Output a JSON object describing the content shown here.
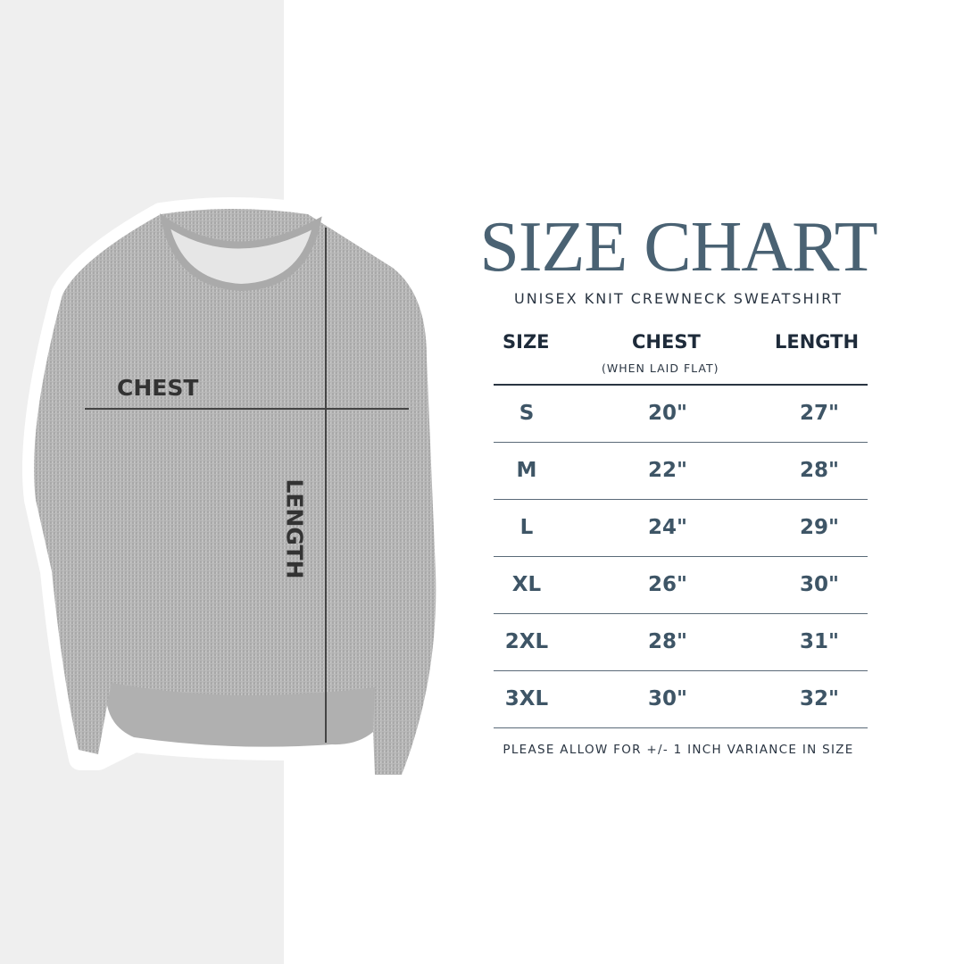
{
  "title": "SIZE CHART",
  "subtitle": "UNISEX KNIT CREWNECK SWEATSHIRT",
  "diagram": {
    "chest_label": "CHEST",
    "length_label": "LENGTH"
  },
  "table": {
    "headers": {
      "size": "SIZE",
      "chest": "CHEST",
      "chest_note": "(WHEN LAID FLAT)",
      "length": "LENGTH"
    },
    "rows": [
      {
        "size": "S",
        "chest": "20\"",
        "length": "27\""
      },
      {
        "size": "M",
        "chest": "22\"",
        "length": "28\""
      },
      {
        "size": "L",
        "chest": "24\"",
        "length": "29\""
      },
      {
        "size": "XL",
        "chest": "26\"",
        "length": "30\""
      },
      {
        "size": "2XL",
        "chest": "28\"",
        "length": "31\""
      },
      {
        "size": "3XL",
        "chest": "30\"",
        "length": "32\""
      }
    ]
  },
  "footer": "PLEASE ALLOW FOR +/- 1 INCH VARIANCE IN SIZE",
  "colors": {
    "title": "#4a6273",
    "header": "#1e2b3a",
    "values": "#3e5566",
    "panel": "#efefef"
  }
}
